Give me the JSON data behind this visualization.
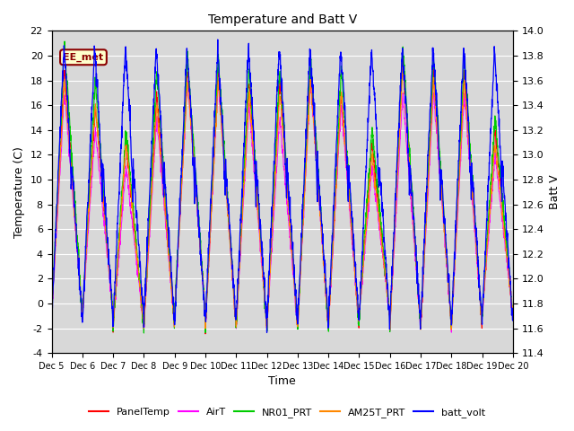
{
  "title": "Temperature and Batt V",
  "xlabel": "Time",
  "ylabel_left": "Temperature (C)",
  "ylabel_right": "Batt V",
  "left_ylim": [
    -4,
    22
  ],
  "right_ylim": [
    11.4,
    14.0
  ],
  "left_yticks": [
    -4,
    -2,
    0,
    2,
    4,
    6,
    8,
    10,
    12,
    14,
    16,
    18,
    20,
    22
  ],
  "right_yticks": [
    11.4,
    11.6,
    11.8,
    12.0,
    12.2,
    12.4,
    12.6,
    12.8,
    13.0,
    13.2,
    13.4,
    13.6,
    13.8,
    14.0
  ],
  "xtick_labels": [
    "Dec 5",
    "Dec 6",
    "Dec 7",
    "Dec 8",
    "Dec 9",
    "Dec 10",
    "Dec 11",
    "Dec 12",
    "Dec 13",
    "Dec 14",
    "Dec 15",
    "Dec 16",
    "Dec 17",
    "Dec 18",
    "Dec 19",
    "Dec 20"
  ],
  "annotation_text": "EE_met",
  "colors": {
    "PanelTemp": "#ff0000",
    "AirT": "#ff00ff",
    "NR01_PRT": "#00cc00",
    "AM25T_PRT": "#ff8800",
    "batt_volt": "#0000ff"
  },
  "legend_labels": [
    "PanelTemp",
    "AirT",
    "NR01_PRT",
    "AM25T_PRT",
    "batt_volt"
  ],
  "plot_bg_color": "#d8d8d8",
  "n_days": 15,
  "pts_per_day": 144
}
